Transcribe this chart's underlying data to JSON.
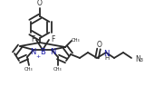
{
  "bg_color": "#ffffff",
  "line_color": "#2a2a2a",
  "bond_lw": 1.3,
  "text_color": "#2a2a2a",
  "blue_color": "#1a1aaa",
  "figsize": [
    1.81,
    1.06
  ],
  "dpi": 100,
  "xlim": [
    0,
    181
  ],
  "ylim": [
    0,
    106
  ]
}
